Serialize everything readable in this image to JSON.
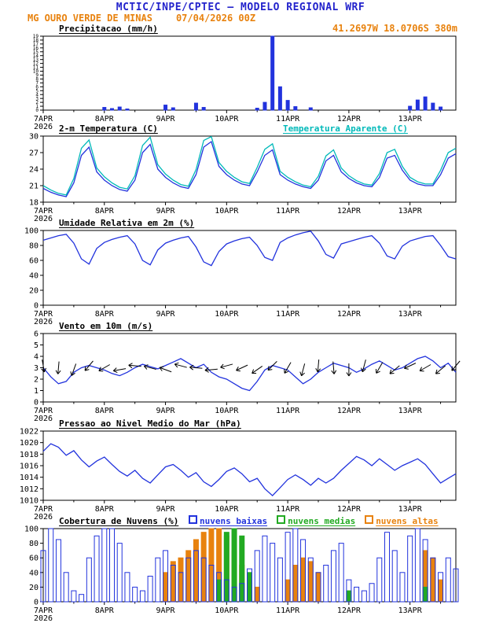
{
  "header": {
    "title": "MCTIC/INPE/CPTEC — MODELO REGIONAL WRF",
    "station": "MG OURO VERDE DE MINAS",
    "run_datetime": "07/04/2026 00Z",
    "location": "41.2697W 18.0706S 380m"
  },
  "colors": {
    "header_blue": "#2323cc",
    "orange": "#e8820e",
    "line_blue": "#2233dd",
    "cyan": "#00b9b9",
    "green": "#22aa22"
  },
  "x_axis": {
    "xlim": [
      0,
      162
    ],
    "unit": "hours since 07APR2026 00Z",
    "label_hours": [
      0,
      24,
      48,
      72,
      96,
      120,
      144
    ],
    "labels": [
      "7APR",
      "8APR",
      "9APR",
      "10APR",
      "11APR",
      "12APR",
      "13APR"
    ],
    "year": "2026"
  },
  "chart_data": [
    {
      "id": "precipitation",
      "type": "bar",
      "title": "Precipitacao (mm/h)",
      "ylim": [
        0,
        19
      ],
      "yticks": [
        0,
        1,
        2,
        3,
        4,
        5,
        6,
        7,
        8,
        9,
        10,
        11,
        12,
        13,
        14,
        15,
        16,
        17,
        18,
        19
      ],
      "x_start": 0,
      "x_step": 3,
      "series": [
        {
          "name": "precipitacao",
          "kind": "bar",
          "color": "#2233dd",
          "fill": true,
          "width": 4,
          "values": [
            0,
            0,
            0,
            0,
            0,
            0,
            0,
            0,
            0.7,
            0.4,
            0.8,
            0.3,
            0,
            0,
            0,
            0,
            1.3,
            0.6,
            0,
            0,
            1.8,
            0.7,
            0,
            0,
            0,
            0,
            0,
            0,
            0.5,
            2.0,
            19.0,
            6.0,
            2.5,
            0.9,
            0,
            0.6,
            0,
            0,
            0,
            0,
            0,
            0,
            0,
            0,
            0,
            0,
            0,
            0,
            1.0,
            2.6,
            3.4,
            1.8,
            0.8,
            0,
            0
          ]
        }
      ]
    },
    {
      "id": "temperature",
      "type": "line",
      "title": "2-m Temperatura (C)",
      "legend_right": "Temperatura Aparente (C)",
      "ylim": [
        18,
        30
      ],
      "yticks": [
        18,
        21,
        24,
        27,
        30
      ],
      "x_start": 0,
      "x_step": 3,
      "series": [
        {
          "name": "2-m Temperatura (C)",
          "kind": "line",
          "color": "#2233dd",
          "values": [
            20.5,
            19.8,
            19.3,
            19.0,
            21.5,
            26.5,
            28.0,
            23.5,
            22.0,
            21.0,
            20.3,
            20.0,
            22.0,
            27.0,
            28.5,
            24.0,
            22.5,
            21.5,
            20.8,
            20.5,
            23.0,
            28.0,
            29.0,
            24.5,
            23.0,
            22.0,
            21.3,
            21.0,
            23.5,
            26.5,
            27.5,
            23.0,
            22.0,
            21.3,
            20.8,
            20.5,
            22.0,
            25.5,
            26.5,
            23.5,
            22.3,
            21.5,
            21.0,
            20.8,
            22.5,
            26.0,
            26.5,
            23.8,
            22.0,
            21.3,
            21.0,
            21.0,
            23.0,
            26.0,
            26.8
          ]
        },
        {
          "name": "Temperatura Aparente (C)",
          "kind": "line",
          "color": "#00b9b9",
          "values": [
            21.0,
            20.2,
            19.6,
            19.3,
            22.3,
            27.8,
            29.3,
            24.2,
            22.6,
            21.5,
            20.7,
            20.4,
            22.8,
            28.3,
            29.8,
            24.8,
            23.1,
            22.0,
            21.2,
            20.9,
            23.9,
            29.2,
            29.9,
            25.2,
            23.6,
            22.5,
            21.7,
            21.4,
            24.3,
            27.6,
            28.6,
            23.6,
            22.5,
            21.7,
            21.1,
            20.8,
            22.7,
            26.4,
            27.5,
            24.2,
            22.8,
            21.9,
            21.3,
            21.1,
            23.2,
            27.0,
            27.6,
            24.5,
            22.5,
            21.7,
            21.3,
            21.3,
            23.8,
            27.0,
            27.8
          ]
        }
      ]
    },
    {
      "id": "humidity",
      "type": "line",
      "title": "Umidade Relativa em 2m (%)",
      "ylim": [
        0,
        100
      ],
      "yticks": [
        0,
        20,
        40,
        60,
        80,
        100
      ],
      "x_start": 0,
      "x_step": 3,
      "series": [
        {
          "name": "umidade relativa",
          "kind": "line",
          "color": "#2233dd",
          "values": [
            87,
            90,
            93,
            95,
            83,
            62,
            55,
            76,
            84,
            88,
            91,
            93,
            82,
            60,
            54,
            74,
            83,
            87,
            90,
            92,
            78,
            58,
            53,
            72,
            82,
            86,
            89,
            91,
            80,
            64,
            60,
            84,
            90,
            94,
            97,
            99,
            86,
            68,
            63,
            82,
            85,
            88,
            91,
            93,
            83,
            66,
            62,
            79,
            86,
            89,
            92,
            93,
            80,
            65,
            62
          ]
        }
      ]
    },
    {
      "id": "wind",
      "type": "line",
      "title": "Vento em 10m (m/s)",
      "ylim": [
        0,
        6
      ],
      "yticks": [
        0,
        1,
        2,
        3,
        4,
        5,
        6
      ],
      "x_start": 0,
      "x_step": 3,
      "series": [
        {
          "name": "vento 10m",
          "kind": "line",
          "color": "#2233dd",
          "values": [
            3.0,
            2.2,
            1.6,
            1.8,
            2.6,
            3.0,
            3.2,
            3.0,
            2.8,
            2.5,
            2.3,
            2.6,
            3.0,
            3.3,
            3.1,
            2.9,
            3.2,
            3.5,
            3.8,
            3.4,
            3.0,
            3.3,
            2.6,
            2.2,
            2.0,
            1.6,
            1.2,
            1.0,
            1.8,
            2.8,
            3.2,
            3.0,
            2.8,
            2.2,
            1.6,
            2.0,
            2.6,
            3.0,
            3.4,
            3.2,
            3.0,
            2.6,
            2.9,
            3.3,
            3.6,
            3.2,
            2.8,
            3.0,
            3.4,
            3.8,
            4.0,
            3.6,
            3.0,
            3.4,
            2.6
          ]
        }
      ],
      "barbs": {
        "step": 6,
        "level": 3,
        "color": "#000000",
        "dirs": [
          80,
          95,
          110,
          130,
          150,
          170,
          185,
          195,
          200,
          195,
          185,
          175,
          165,
          155,
          145,
          135,
          120,
          105,
          95,
          85,
          90,
          105,
          120,
          140,
          155,
          150,
          140,
          130
        ]
      }
    },
    {
      "id": "pressure",
      "type": "line",
      "title": "Pressao ao Nivel Medio do Mar (hPa)",
      "ylim": [
        1010,
        1022
      ],
      "yticks": [
        1010,
        1012,
        1014,
        1016,
        1018,
        1020,
        1022
      ],
      "x_start": 0,
      "x_step": 3,
      "series": [
        {
          "name": "pressao nivel medio mar",
          "kind": "line",
          "color": "#2233dd",
          "values": [
            1018.5,
            1019.8,
            1019.2,
            1017.8,
            1018.6,
            1017.0,
            1015.8,
            1016.8,
            1017.5,
            1016.2,
            1015.0,
            1014.2,
            1015.2,
            1013.8,
            1013.0,
            1014.4,
            1015.8,
            1016.2,
            1015.2,
            1014.0,
            1014.8,
            1013.2,
            1012.4,
            1013.6,
            1015.0,
            1015.6,
            1014.6,
            1013.2,
            1013.8,
            1012.0,
            1010.8,
            1012.2,
            1013.6,
            1014.4,
            1013.6,
            1012.6,
            1013.8,
            1013.0,
            1013.8,
            1015.2,
            1016.4,
            1017.6,
            1017.0,
            1016.0,
            1017.2,
            1016.2,
            1015.2,
            1016.0,
            1016.6,
            1017.2,
            1016.2,
            1014.6,
            1013.0,
            1013.8,
            1014.6
          ]
        }
      ]
    },
    {
      "id": "clouds",
      "type": "bar",
      "title": "Cobertura de Nuvens (%)",
      "ylim": [
        0,
        100
      ],
      "yticks": [
        0,
        20,
        40,
        60,
        80,
        100
      ],
      "x_start": 0,
      "x_step": 3,
      "legend": [
        {
          "label": "nuvens baixas",
          "color": "#2233dd"
        },
        {
          "label": "nuvens medias",
          "color": "#22aa22"
        },
        {
          "label": "nuvens altas",
          "color": "#e8820e"
        }
      ],
      "series": [
        {
          "name": "nuvens altas",
          "kind": "bar",
          "color": "#e8820e",
          "fill": true,
          "width": 6,
          "values": [
            0,
            0,
            0,
            0,
            0,
            0,
            0,
            0,
            0,
            0,
            0,
            0,
            0,
            0,
            0,
            0,
            40,
            55,
            60,
            70,
            85,
            95,
            100,
            100,
            90,
            70,
            50,
            30,
            20,
            0,
            0,
            0,
            30,
            50,
            60,
            55,
            40,
            0,
            0,
            0,
            0,
            0,
            0,
            0,
            0,
            0,
            0,
            0,
            0,
            0,
            70,
            60,
            30,
            0,
            0
          ]
        },
        {
          "name": "nuvens medias",
          "kind": "bar",
          "color": "#22aa22",
          "fill": true,
          "width": 6,
          "values": [
            0,
            0,
            0,
            0,
            0,
            0,
            0,
            0,
            0,
            0,
            0,
            0,
            0,
            0,
            0,
            0,
            0,
            0,
            0,
            0,
            0,
            0,
            0,
            30,
            95,
            100,
            90,
            40,
            0,
            0,
            0,
            0,
            0,
            0,
            0,
            0,
            0,
            0,
            0,
            0,
            15,
            0,
            0,
            0,
            0,
            0,
            0,
            0,
            0,
            0,
            20,
            0,
            0,
            0,
            0
          ]
        },
        {
          "name": "nuvens baixas",
          "kind": "bar",
          "color": "#2233dd",
          "fill": false,
          "width": 6,
          "values": [
            70,
            100,
            85,
            40,
            15,
            10,
            60,
            90,
            100,
            100,
            80,
            40,
            20,
            15,
            35,
            60,
            70,
            50,
            40,
            60,
            70,
            60,
            50,
            40,
            30,
            20,
            25,
            45,
            70,
            90,
            80,
            60,
            95,
            100,
            85,
            60,
            40,
            50,
            70,
            80,
            30,
            20,
            15,
            25,
            60,
            95,
            70,
            40,
            90,
            100,
            85,
            60,
            40,
            60,
            45
          ]
        }
      ]
    }
  ]
}
